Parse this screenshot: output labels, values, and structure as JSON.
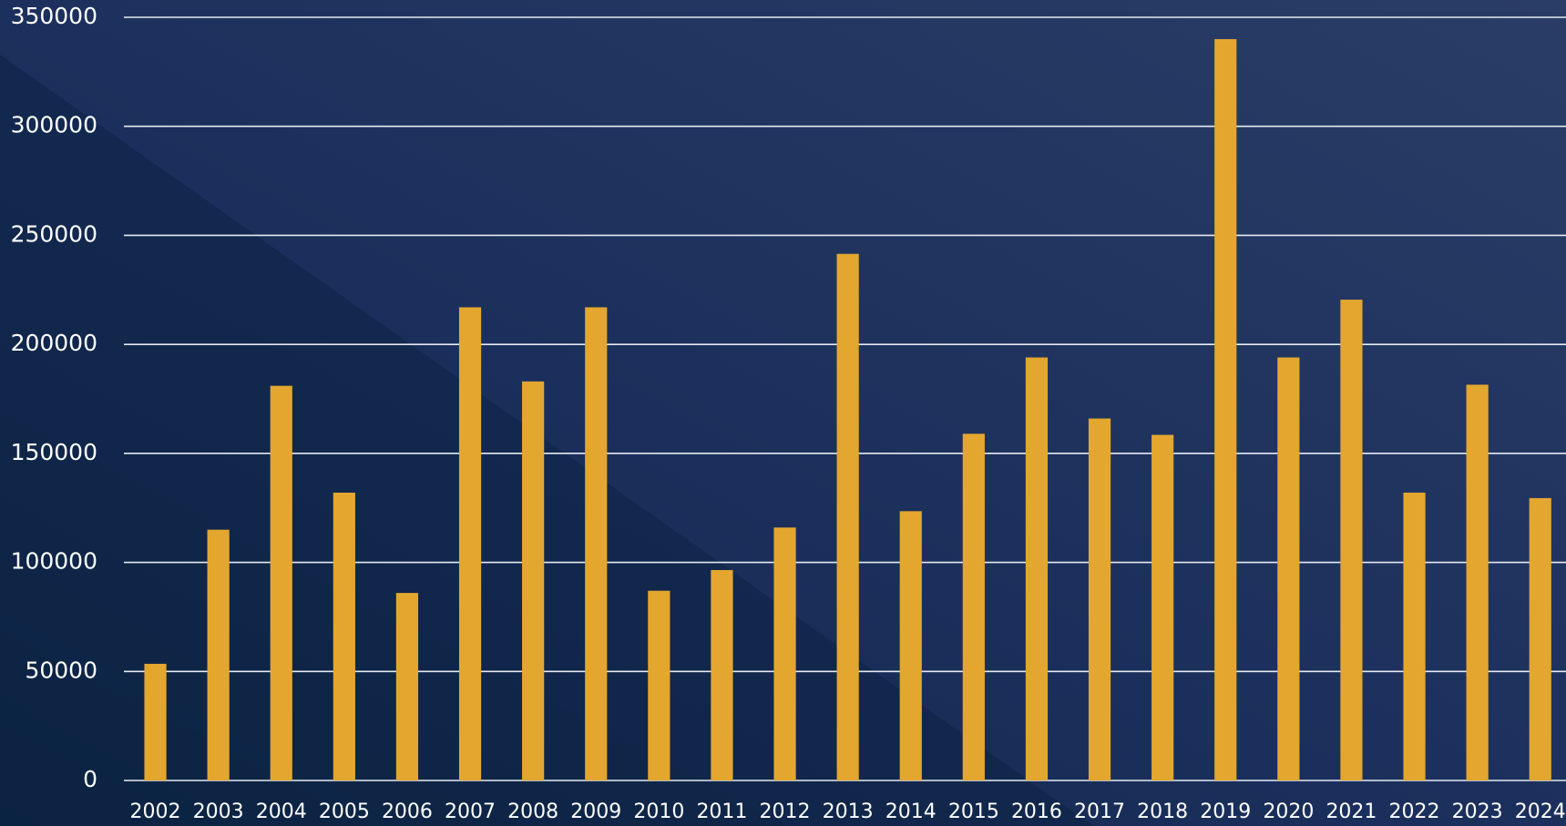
{
  "chart_data": {
    "type": "bar",
    "categories": [
      "2002",
      "2003",
      "2004",
      "2005",
      "2006",
      "2007",
      "2008",
      "2009",
      "2010",
      "2011",
      "2012",
      "2013",
      "2014",
      "2015",
      "2016",
      "2017",
      "2018",
      "2019",
      "2020",
      "2021",
      "2022",
      "2023",
      "2024"
    ],
    "values": [
      53500,
      115000,
      181000,
      132000,
      86000,
      217000,
      183000,
      217000,
      87000,
      96500,
      116000,
      241500,
      123500,
      159000,
      194000,
      166000,
      158500,
      340000,
      194000,
      220500,
      132000,
      181500,
      129500
    ],
    "color": "#e3a72f",
    "ylim": [
      0,
      350000
    ],
    "yticks": [
      0,
      50000,
      100000,
      150000,
      200000,
      250000,
      300000,
      350000
    ],
    "grid": true
  }
}
